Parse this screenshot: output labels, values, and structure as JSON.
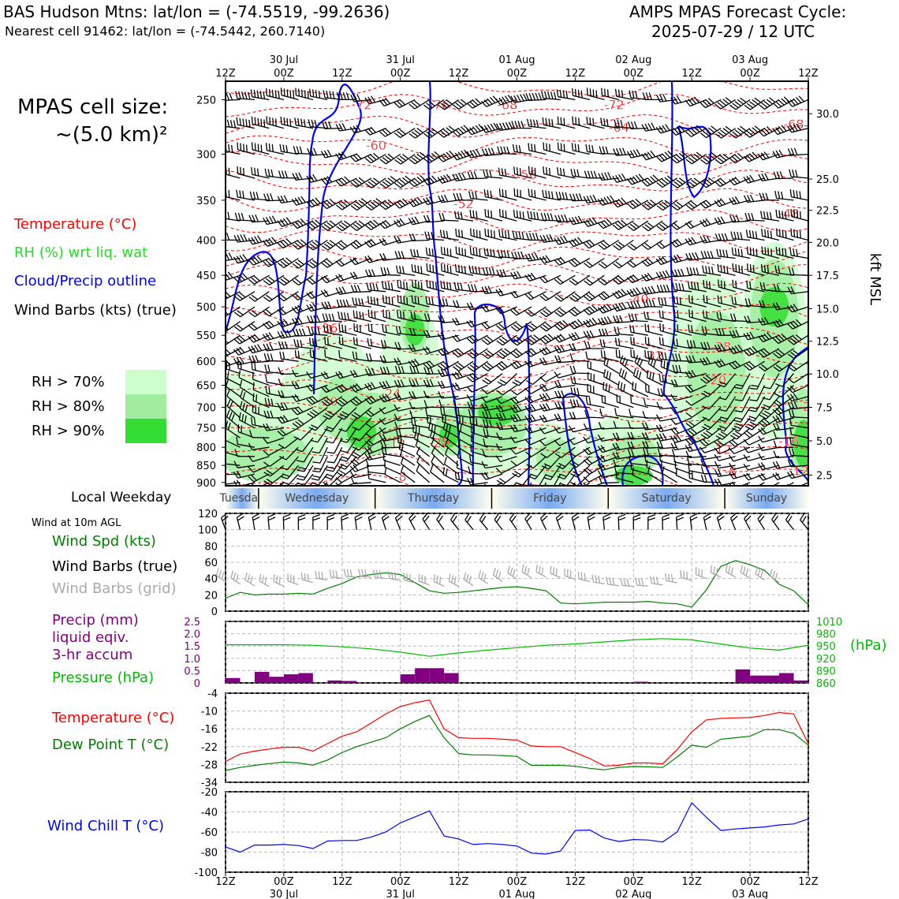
{
  "header": {
    "title_left": "BAS Hudson Mtns: lat/lon = (-74.5519, -99.2636)",
    "subtitle_left": "Nearest cell 91462: lat/lon = (-74.5442, 260.7140)",
    "title_right_1": "AMPS MPAS Forecast Cycle:",
    "title_right_2": "2025-07-29 / 12 UTC"
  },
  "side_legend": {
    "cell_size_line1": "MPAS cell size:",
    "cell_size_line2": "~(5.0 km)²",
    "temperature": "Temperature (°C)",
    "rh": "RH (%) wrt liq. wat",
    "cloud": "Cloud/Precip outline",
    "wind_barbs": "Wind Barbs (kts) (true)",
    "rh70": "RH > 70%",
    "rh80": "RH > 80%",
    "rh90": "RH > 90%",
    "local_weekday": "Local Weekday",
    "wind10m": "Wind at 10m AGL",
    "wind_spd": "Wind Spd (kts)",
    "wind_barbs_true": "Wind Barbs (true)",
    "wind_barbs_grid": "Wind Barbs (grid)",
    "precip_1": "Precip (mm)",
    "precip_2": "liquid eqiv.",
    "precip_3": "3-hr accum",
    "pressure": "Pressure (hPa)",
    "hpa_unit": "(hPa)",
    "temperature2": "Temperature (°C)",
    "dewpoint": "Dew Point T (°C)",
    "windchill": "Wind Chill T (°C)",
    "kft_label": "kft MSL"
  },
  "colors": {
    "temperature": "#ff0000",
    "dewpoint": "#008000",
    "rh_green": "#22dd22",
    "cloud_outline": "#0000ff",
    "wind_speed": "#008000",
    "grid_barbs": "#aaaaaa",
    "precip": "#800080",
    "pressure": "#00bb00",
    "windchill": "#0000ff",
    "rh70": "#ccffcc",
    "rh80": "#a0eda0",
    "rh90": "#33dd33"
  },
  "time_axis": {
    "top_dates": [
      "30 Jul",
      "31 Jul",
      "01 Aug",
      "02 Aug",
      "03 Aug"
    ],
    "ticks": [
      "12Z",
      "00Z",
      "12Z",
      "00Z",
      "12Z",
      "00Z",
      "12Z",
      "00Z",
      "12Z",
      "00Z",
      "12Z"
    ],
    "date_tick_indices": [
      1,
      3,
      5,
      7,
      9
    ]
  },
  "weekdays": [
    "Tuesday",
    "Wednesday",
    "Thursday",
    "Friday",
    "Saturday",
    "Sunday"
  ],
  "chart_data": [
    {
      "type": "heatmap",
      "name": "cross-section",
      "y_left_ticks": [
        "250",
        "300",
        "350",
        "400",
        "450",
        "500",
        "550",
        "600",
        "650",
        "700",
        "750",
        "800",
        "850",
        "900"
      ],
      "y_right_ticks": [
        "30.0",
        "25.0",
        "22.5",
        "20.0",
        "17.5",
        "15.0",
        "12.5",
        "10.0",
        "7.5",
        "5.0",
        "2.5"
      ],
      "ylim_hpa": [
        910,
        235
      ],
      "xlim_hours": [
        0,
        120
      ],
      "temperature_labels": [
        {
          "t": 28,
          "p": 255,
          "text": "-72"
        },
        {
          "t": 44,
          "p": 255,
          "text": "-76"
        },
        {
          "t": 58,
          "p": 255,
          "text": "-68"
        },
        {
          "t": 80,
          "p": 255,
          "text": "-72"
        },
        {
          "t": 117,
          "p": 272,
          "text": "-68"
        },
        {
          "t": 81,
          "p": 275,
          "text": "-64"
        },
        {
          "t": 31,
          "p": 292,
          "text": "-60"
        },
        {
          "t": 62,
          "p": 322,
          "text": "-56"
        },
        {
          "t": 49,
          "p": 355,
          "text": "-52"
        },
        {
          "t": 116,
          "p": 367,
          "text": "-48"
        },
        {
          "t": 85,
          "p": 488,
          "text": "-40"
        },
        {
          "t": 21,
          "p": 538,
          "text": "-36"
        },
        {
          "t": 88,
          "p": 590,
          "text": "-32"
        },
        {
          "t": 102,
          "p": 573,
          "text": "-28"
        },
        {
          "t": 34,
          "p": 670,
          "text": "-24"
        },
        {
          "t": 120,
          "p": 700,
          "text": "-24"
        },
        {
          "t": 101,
          "p": 641,
          "text": "-20"
        },
        {
          "t": 21,
          "p": 688,
          "text": "-20"
        },
        {
          "t": 116,
          "p": 786,
          "text": "-16"
        },
        {
          "t": 35,
          "p": 793,
          "text": "-12"
        },
        {
          "t": 102,
          "p": 808,
          "text": "-12"
        },
        {
          "t": 44,
          "p": 790,
          "text": "-28"
        },
        {
          "t": 104,
          "p": 870,
          "text": "-8"
        },
        {
          "t": 36,
          "p": 885,
          "text": "-8"
        },
        {
          "t": 118,
          "p": 868,
          "text": "-12"
        }
      ]
    },
    {
      "type": "line",
      "name": "wind10m",
      "x_hours": [
        0,
        3,
        6,
        9,
        12,
        15,
        18,
        21,
        24,
        27,
        30,
        33,
        36,
        39,
        42,
        45,
        48,
        51,
        54,
        57,
        60,
        63,
        66,
        69,
        72,
        75,
        78,
        81,
        84,
        87,
        90,
        93,
        96,
        99,
        102,
        105,
        108,
        111,
        114,
        117,
        120
      ],
      "ylim": [
        0,
        120
      ],
      "y_ticks": [
        "0",
        "20",
        "40",
        "60",
        "80",
        "100",
        "120"
      ],
      "series": [
        {
          "values": [
            16,
            23,
            20,
            21,
            21,
            22,
            21,
            28,
            34,
            42,
            45,
            47,
            45,
            35,
            25,
            22,
            23,
            25,
            27,
            29,
            30,
            28,
            25,
            10,
            9,
            10,
            11,
            11,
            11,
            12,
            10,
            9,
            5,
            26,
            55,
            62,
            57,
            50,
            33,
            25,
            8
          ]
        }
      ]
    },
    {
      "type": "bar",
      "name": "precip_pressure",
      "precip_ylim": [
        0,
        2.5
      ],
      "precip_y_ticks": [
        "0",
        "0.5",
        "1.0",
        "1.5",
        "2.0",
        "2.5"
      ],
      "pressure_ylim": [
        860,
        1010
      ],
      "pressure_y_ticks": [
        "860",
        "890",
        "920",
        "950",
        "980",
        "1010"
      ],
      "precip_bars": [
        {
          "t": 1.5,
          "v": 0.2
        },
        {
          "t": 7.5,
          "v": 0.45
        },
        {
          "t": 10.5,
          "v": 0.25
        },
        {
          "t": 13.5,
          "v": 0.35
        },
        {
          "t": 16.5,
          "v": 0.4
        },
        {
          "t": 22.5,
          "v": 0.1
        },
        {
          "t": 25.5,
          "v": 0.08
        },
        {
          "t": 37.5,
          "v": 0.35
        },
        {
          "t": 40.5,
          "v": 0.6
        },
        {
          "t": 43.5,
          "v": 0.6
        },
        {
          "t": 46.5,
          "v": 0.4
        },
        {
          "t": 85.5,
          "v": 0.05
        },
        {
          "t": 106.5,
          "v": 0.55
        },
        {
          "t": 109.5,
          "v": 0.3
        },
        {
          "t": 112.5,
          "v": 0.3
        },
        {
          "t": 115.5,
          "v": 0.4
        },
        {
          "t": 118.5,
          "v": 0.1
        }
      ],
      "pressure_x_hours": [
        0,
        6,
        12,
        18,
        24,
        30,
        36,
        42,
        48,
        54,
        60,
        66,
        72,
        78,
        84,
        90,
        96,
        102,
        108,
        114,
        120
      ],
      "pressure_values": [
        953,
        953,
        953,
        952,
        948,
        943,
        935,
        925,
        933,
        940,
        946,
        952,
        955,
        960,
        965,
        968,
        965,
        955,
        945,
        940,
        952
      ]
    },
    {
      "type": "line",
      "name": "temp_dewpoint",
      "x_hours": [
        0,
        3,
        6,
        9,
        12,
        15,
        18,
        21,
        24,
        27,
        30,
        33,
        36,
        39,
        42,
        45,
        48,
        51,
        54,
        57,
        60,
        63,
        66,
        69,
        72,
        75,
        78,
        81,
        84,
        87,
        90,
        93,
        96,
        99,
        102,
        105,
        108,
        111,
        114,
        117,
        120
      ],
      "ylim": [
        -34,
        -4
      ],
      "y_ticks": [
        "-4",
        "-10",
        "-16",
        "-22",
        "-28",
        "-34"
      ],
      "series": [
        {
          "name": "Temperature (°C)",
          "values": [
            -27,
            -24.5,
            -23.5,
            -22.8,
            -22.2,
            -22.2,
            -23.5,
            -21,
            -18.5,
            -17,
            -14,
            -11,
            -8.5,
            -7.2,
            -6.3,
            -16,
            -19,
            -19.2,
            -19.2,
            -19.5,
            -19.8,
            -21.8,
            -22,
            -22,
            -24,
            -26,
            -28.5,
            -28.3,
            -27.5,
            -27.5,
            -27.8,
            -23,
            -17,
            -13,
            -12.5,
            -12.3,
            -12.2,
            -11.5,
            -10.5,
            -11,
            -21
          ]
        },
        {
          "name": "Dew Point T (°C)",
          "values": [
            -30,
            -29,
            -28.3,
            -27.7,
            -27.2,
            -27.5,
            -28.2,
            -26.5,
            -24,
            -22,
            -20.5,
            -19,
            -16,
            -13.5,
            -11.5,
            -19,
            -24.3,
            -24.8,
            -24.8,
            -25,
            -25.3,
            -28.3,
            -28.3,
            -28.3,
            -28.6,
            -29.3,
            -29.8,
            -29,
            -28.7,
            -28.8,
            -29,
            -25.5,
            -21.5,
            -22.2,
            -19.5,
            -19,
            -18.5,
            -16.3,
            -16.3,
            -17.5,
            -21.5
          ]
        }
      ]
    },
    {
      "type": "line",
      "name": "windchill",
      "x_hours": [
        0,
        3,
        6,
        9,
        12,
        15,
        18,
        21,
        24,
        27,
        30,
        33,
        36,
        39,
        42,
        45,
        48,
        51,
        54,
        57,
        60,
        63,
        66,
        69,
        72,
        75,
        78,
        81,
        84,
        87,
        90,
        93,
        96,
        99,
        102,
        105,
        108,
        111,
        114,
        117,
        120
      ],
      "ylim": [
        -100,
        -20
      ],
      "y_ticks": [
        "-20",
        "-40",
        "-60",
        "-80",
        "-100"
      ],
      "series": [
        {
          "name": "Wind Chill T (°C)",
          "values": [
            -75,
            -80,
            -73,
            -73,
            -72.5,
            -73.5,
            -76.5,
            -69,
            -68.5,
            -68.5,
            -65,
            -60,
            -51,
            -45,
            -39,
            -64,
            -67,
            -72.5,
            -71.5,
            -72.5,
            -74,
            -81,
            -82,
            -79,
            -58.5,
            -58,
            -66,
            -69.5,
            -67.5,
            -68,
            -70,
            -60,
            -31,
            -45.5,
            -58.5,
            -57,
            -56,
            -55,
            -53,
            -52,
            -47
          ]
        }
      ]
    }
  ]
}
